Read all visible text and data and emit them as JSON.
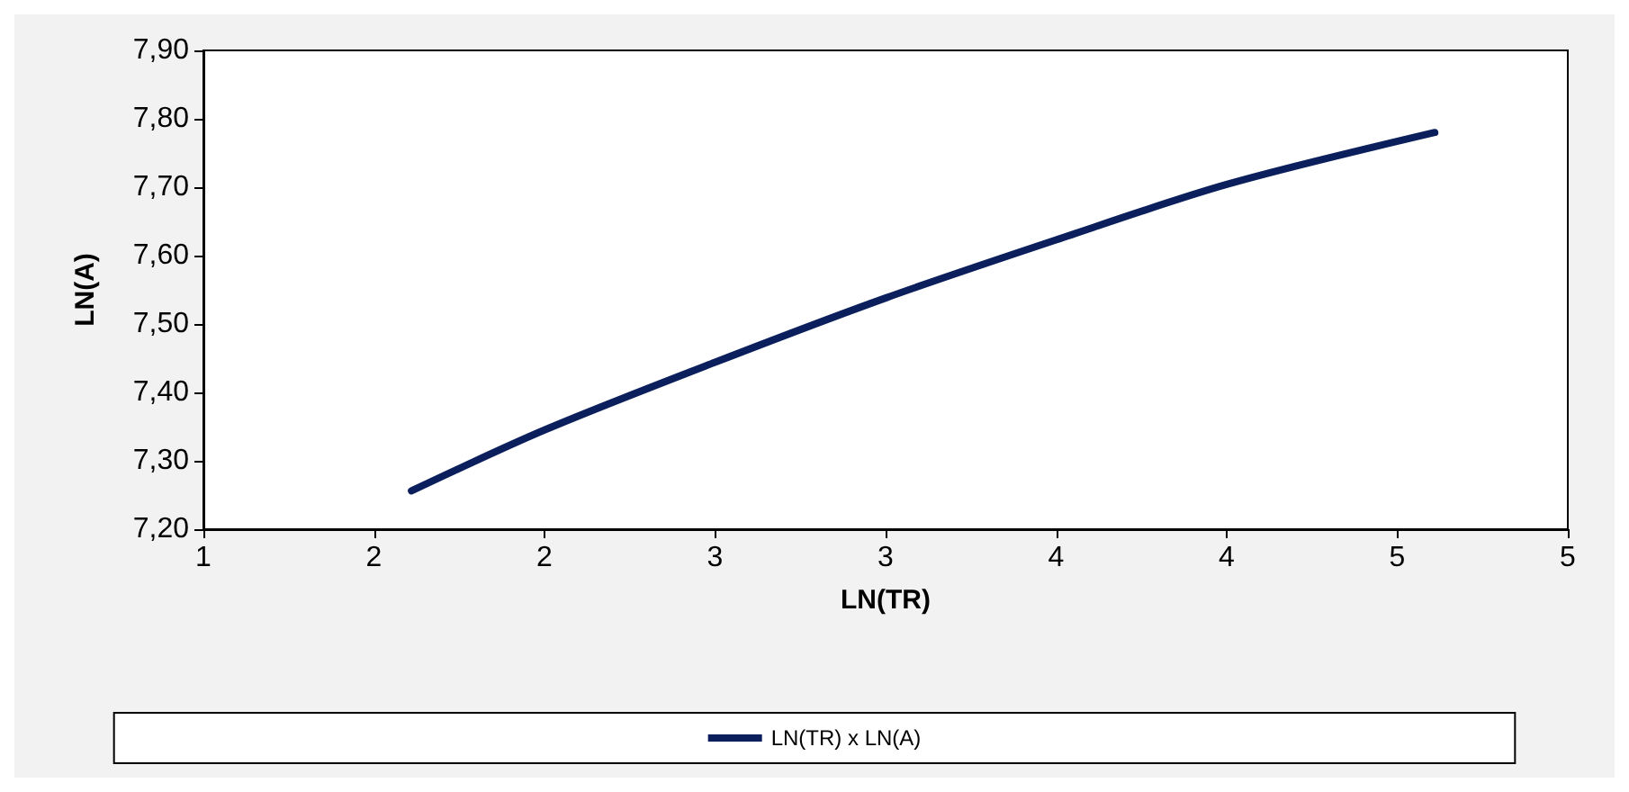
{
  "chart_data": {
    "type": "line",
    "xlabel": "LN(TR)",
    "ylabel": "LN(A)",
    "x": [
      1.61,
      2.0,
      2.5,
      3.0,
      3.5,
      4.0,
      4.61
    ],
    "series": [
      {
        "name": "LN(TR) x LN(A)",
        "color": "#0a1f5c",
        "values": [
          7.256,
          7.345,
          7.444,
          7.538,
          7.623,
          7.704,
          7.78
        ]
      }
    ],
    "xlim": [
      1,
      5
    ],
    "xticks": [
      1,
      {
        "value": 1.5,
        "label": "2"
      },
      2,
      {
        "value": 2.5,
        "label": "3"
      },
      3,
      {
        "value": 3.5,
        "label": "4"
      },
      4,
      {
        "value": 4.5,
        "label": "5"
      },
      5
    ],
    "ylim": [
      7.2,
      7.9
    ],
    "yticks": [
      {
        "value": 7.2,
        "label": "7,20"
      },
      {
        "value": 7.3,
        "label": "7,30"
      },
      {
        "value": 7.4,
        "label": "7,40"
      },
      {
        "value": 7.5,
        "label": "7,50"
      },
      {
        "value": 7.6,
        "label": "7,60"
      },
      {
        "value": 7.7,
        "label": "7,70"
      },
      {
        "value": 7.8,
        "label": "7,80"
      },
      {
        "value": 7.9,
        "label": "7,90"
      }
    ],
    "grid": false,
    "legend": "bottom",
    "marker": "none",
    "line_style": "solid"
  }
}
